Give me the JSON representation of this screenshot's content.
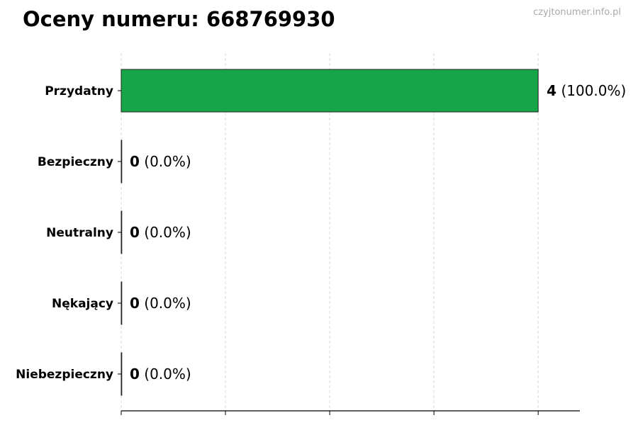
{
  "header": {
    "title": "Oceny numeru: 668769930",
    "watermark": "czyjtonumer.info.pl"
  },
  "chart_data": {
    "type": "bar",
    "orientation": "horizontal",
    "title": "Oceny numeru: 668769930",
    "categories": [
      "Przydatny",
      "Bezpieczny",
      "Neutralny",
      "Nękający",
      "Niebezpieczny"
    ],
    "values": [
      4,
      0,
      0,
      0,
      0
    ],
    "labels": [
      "(100.0%)",
      "(0.0%)",
      "(0.0%)",
      "(0.0%)",
      "(0.0%)"
    ],
    "xlim": [
      0,
      4.4
    ],
    "xticks": [
      0,
      1,
      2,
      3,
      4
    ],
    "xtick_labels_shown": false,
    "grid": "x, dashed",
    "bar_color": "#17a54a",
    "xlabel": "",
    "ylabel": ""
  }
}
